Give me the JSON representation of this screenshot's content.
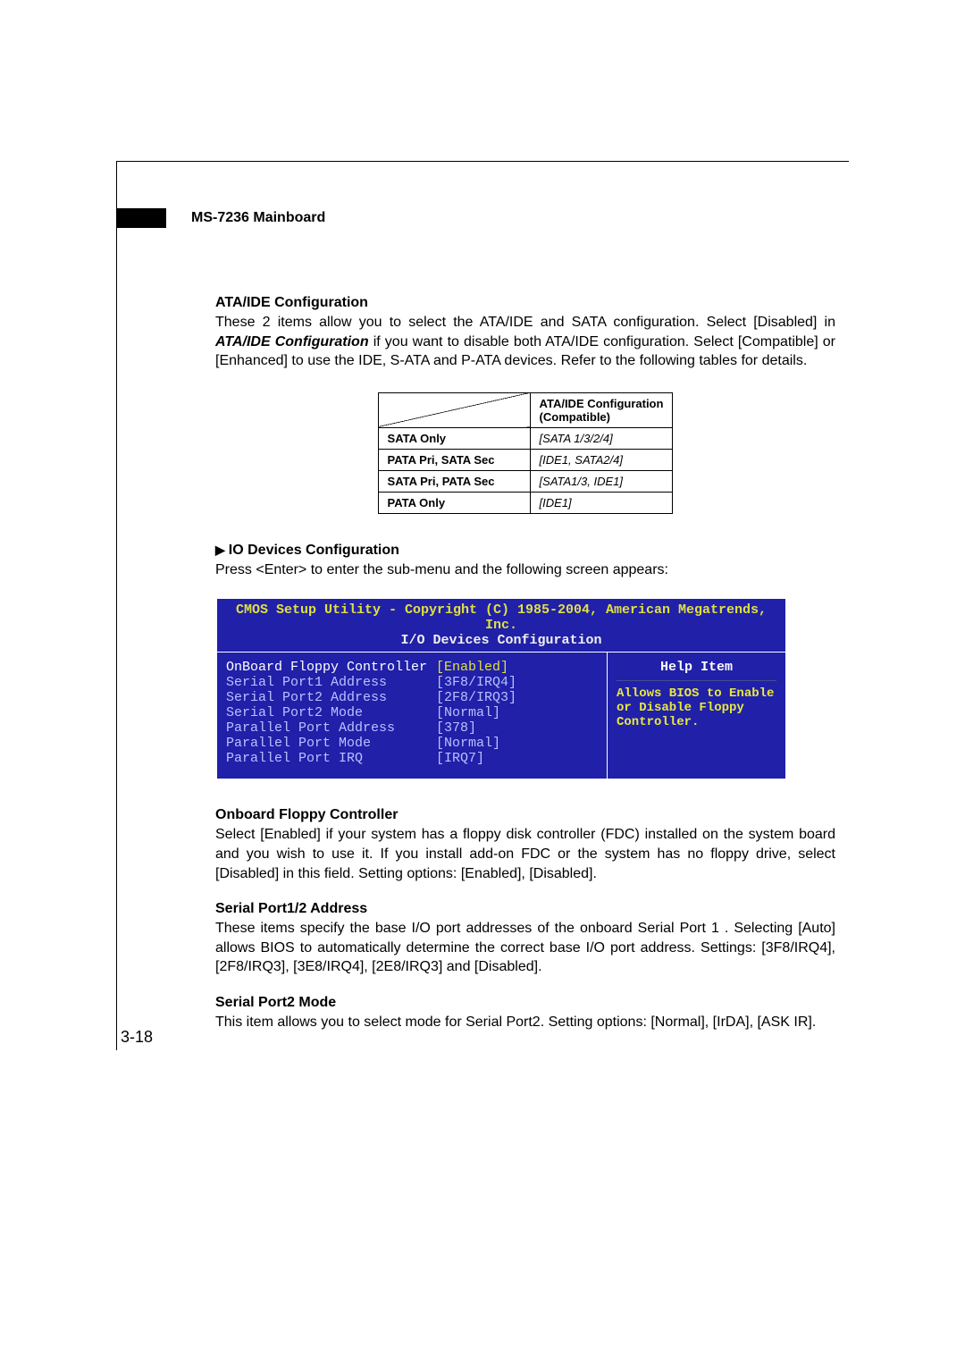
{
  "header": {
    "title": "MS-7236 Mainboard"
  },
  "section1": {
    "title": "ATA/IDE Configuration",
    "text": "These 2 items allow you to select the ATA/IDE and SATA configuration. Select [Disabled] in ATA/IDE Configuration if you want to disable both ATA/IDE configuration. Select [Compatible] or [Enhanced] to use the IDE, S-ATA and P-ATA devices. Refer to the following tables for details."
  },
  "table": {
    "header_line1": "ATA/IDE Configuration",
    "header_line2": "(Compatible)",
    "rows": [
      {
        "label": "SATA Only",
        "value": "[SATA 1/3/2/4]"
      },
      {
        "label": "PATA Pri, SATA Sec",
        "value": "[IDE1, SATA2/4]"
      },
      {
        "label": "SATA Pri, PATA Sec",
        "value": "[SATA1/3, IDE1]"
      },
      {
        "label": "PATA Only",
        "value": "[IDE1]"
      }
    ]
  },
  "section2": {
    "title": "IO Devices Configuration",
    "text": "Press <Enter> to enter the sub-menu and the following screen appears:"
  },
  "bios": {
    "title1": "CMOS Setup Utility - Copyright (C) 1985-2004, American Megatrends, Inc.",
    "title2": "I/O Devices Configuration",
    "rows": [
      {
        "label": "OnBoard Floppy Controller",
        "value": "[Enabled]",
        "highlight": true
      },
      {
        "label": "Serial Port1 Address",
        "value": "[3F8/IRQ4]",
        "highlight": false
      },
      {
        "label": "Serial Port2 Address",
        "value": "[2F8/IRQ3]",
        "highlight": false
      },
      {
        "label": "  Serial Port2 Mode",
        "value": "[Normal]",
        "highlight": false
      },
      {
        "label": "Parallel Port Address",
        "value": "[378]",
        "highlight": false
      },
      {
        "label": "  Parallel Port Mode",
        "value": "[Normal]",
        "highlight": false
      },
      {
        "label": "  Parallel Port IRQ",
        "value": "[IRQ7]",
        "highlight": false
      }
    ],
    "help_title": "Help Item",
    "help_body": "Allows BIOS to Enable or Disable Floppy Controller."
  },
  "section3": {
    "title": "Onboard Floppy Controller",
    "text": "Select [Enabled] if your system has a floppy disk controller (FDC) installed on the system board and you wish to use it. If you install add-on FDC or the system has no floppy drive, select [Disabled] in this field. Setting options: [Enabled], [Disabled]."
  },
  "section4": {
    "title": "Serial Port1/2 Address",
    "text": "These items specify the base I/O port addresses of the onboard Serial Port 1 . Selecting [Auto] allows BIOS to automatically determine the correct base I/O port address. Settings: [3F8/IRQ4], [2F8/IRQ3], [3E8/IRQ4], [2E8/IRQ3] and [Disabled]."
  },
  "section5": {
    "title": "Serial Port2 Mode",
    "text": "This item allows you to select mode for Serial Port2. Setting options: [Normal], [IrDA], [ASK IR]."
  },
  "page_number": "3-18"
}
